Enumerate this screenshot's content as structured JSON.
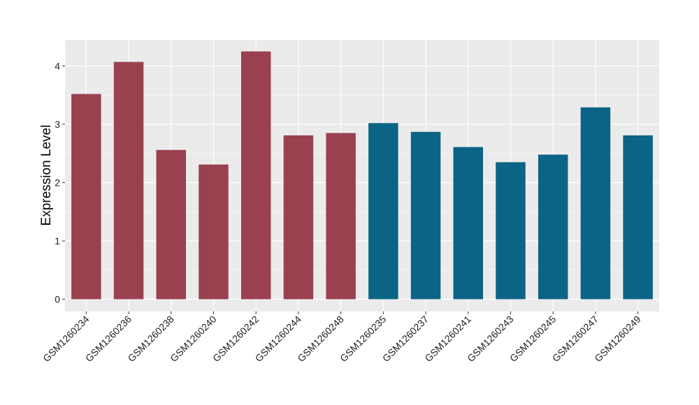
{
  "chart_data": {
    "type": "bar",
    "title": "",
    "xlabel": "",
    "ylabel": "Expression Level",
    "ylim": [
      -0.2,
      4.45
    ],
    "yticks": [
      0,
      1,
      2,
      3,
      4
    ],
    "grid": true,
    "categories": [
      "GSM1260234",
      "GSM1260236",
      "GSM1260238",
      "GSM1260240",
      "GSM1260242",
      "GSM1260244",
      "GSM1260248",
      "GSM1260235",
      "GSM1260237",
      "GSM1260241",
      "GSM1260243",
      "GSM1260245",
      "GSM1260247",
      "GSM1260249"
    ],
    "values": [
      3.52,
      4.07,
      2.56,
      2.31,
      4.25,
      2.81,
      2.85,
      3.02,
      2.87,
      2.61,
      2.35,
      2.48,
      3.29,
      2.81
    ],
    "groups": [
      "A",
      "A",
      "A",
      "A",
      "A",
      "A",
      "A",
      "B",
      "B",
      "B",
      "B",
      "B",
      "B",
      "B"
    ],
    "colors": {
      "A": "#9A4150",
      "B": "#0B6486"
    },
    "panel_background": "#EBEBEB"
  }
}
